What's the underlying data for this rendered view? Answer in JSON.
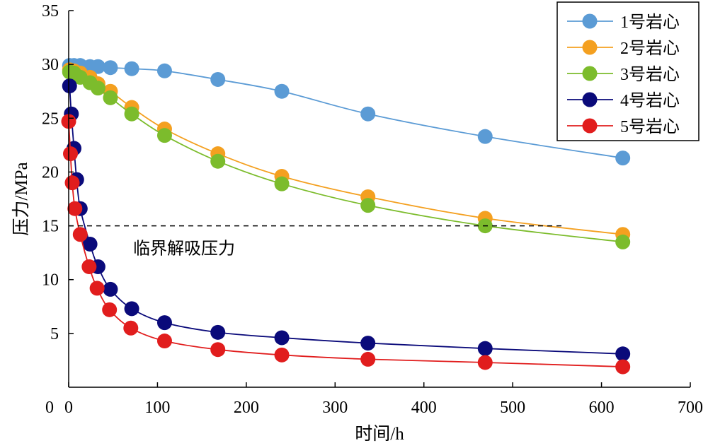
{
  "chart_data": {
    "type": "line",
    "xlabel": "时间/h",
    "ylabel": "压力/MPa",
    "xlim": [
      0,
      700
    ],
    "ylim": [
      0,
      35
    ],
    "x_ticks": [
      0,
      100,
      200,
      300,
      400,
      500,
      600,
      700
    ],
    "y_ticks": [
      5,
      10,
      15,
      20,
      25,
      30,
      35
    ],
    "x_tick_labels": [
      "0",
      "100",
      "200",
      "300",
      "400",
      "500",
      "600",
      "700"
    ],
    "y_tick_labels": [
      "5",
      "10",
      "15",
      "20",
      "25",
      "30",
      "35"
    ],
    "grid": false,
    "legend_position": "top-right",
    "reference_line": {
      "y": 15,
      "x_end": 555,
      "style": "dashed",
      "label": "临界解吸压力"
    },
    "series": [
      {
        "name": "1号岩心",
        "color": "#5b9bd5",
        "x": [
          1,
          6,
          13,
          24,
          33,
          47,
          71,
          108,
          168,
          240,
          337,
          469,
          624
        ],
        "y": [
          29.9,
          29.9,
          29.9,
          29.8,
          29.8,
          29.7,
          29.6,
          29.4,
          28.6,
          27.5,
          25.4,
          23.3,
          21.3
        ]
      },
      {
        "name": "2号岩心",
        "color": "#f4a020",
        "x": [
          1,
          6,
          13,
          24,
          33,
          47,
          71,
          108,
          168,
          240,
          337,
          469,
          624
        ],
        "y": [
          29.5,
          29.4,
          29.2,
          28.8,
          28.2,
          27.5,
          26.0,
          24.0,
          21.7,
          19.6,
          17.7,
          15.7,
          14.2
        ]
      },
      {
        "name": "3号岩心",
        "color": "#7cbc2c",
        "x": [
          1,
          6,
          13,
          24,
          33,
          47,
          71,
          108,
          168,
          240,
          337,
          469,
          624
        ],
        "y": [
          29.3,
          29.2,
          28.8,
          28.3,
          27.8,
          26.9,
          25.4,
          23.4,
          21.0,
          18.9,
          16.9,
          15.0,
          13.5
        ]
      },
      {
        "name": "4号岩心",
        "color": "#0a0a7a",
        "x": [
          1,
          3,
          6,
          9,
          13,
          24,
          33,
          47,
          71,
          108,
          168,
          240,
          337,
          469,
          624
        ],
        "y": [
          28.0,
          25.4,
          22.2,
          19.3,
          16.6,
          13.3,
          11.2,
          9.1,
          7.3,
          6.0,
          5.1,
          4.6,
          4.1,
          3.6,
          3.1
        ]
      },
      {
        "name": "5号岩心",
        "color": "#e11d1d",
        "x": [
          0,
          2,
          4,
          7,
          13,
          23,
          32,
          46,
          70,
          108,
          168,
          240,
          337,
          469,
          624
        ],
        "y": [
          24.7,
          21.7,
          19.0,
          16.6,
          14.2,
          11.2,
          9.2,
          7.2,
          5.5,
          4.3,
          3.5,
          3.0,
          2.6,
          2.3,
          1.9
        ]
      }
    ]
  }
}
